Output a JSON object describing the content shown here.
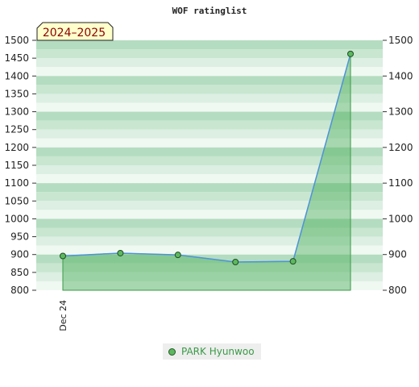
{
  "chart_data": {
    "type": "area",
    "title": "WOF ratinglist",
    "badge": "2024–2025",
    "ylim": [
      800,
      1500
    ],
    "yticks": [
      800,
      850,
      900,
      950,
      1000,
      1050,
      1100,
      1150,
      1200,
      1250,
      1300,
      1350,
      1400,
      1450,
      1500
    ],
    "yticks_right": [
      800,
      900,
      1000,
      1100,
      1200,
      1300,
      1400,
      1500
    ],
    "xtick_labels": [
      "Dec 24"
    ],
    "series": [
      {
        "name": "PARK Hyunwoo",
        "values": [
          896,
          904,
          899,
          879,
          881,
          1462
        ]
      }
    ],
    "legend_position": "bottom-center",
    "grid": "horizontal bands",
    "colors": {
      "line": "#4f93d8",
      "fill": "#4caf5a",
      "marker": "#5db85f",
      "band_dark": "#b4dcc0",
      "band_light": "#f0f8f2"
    }
  }
}
